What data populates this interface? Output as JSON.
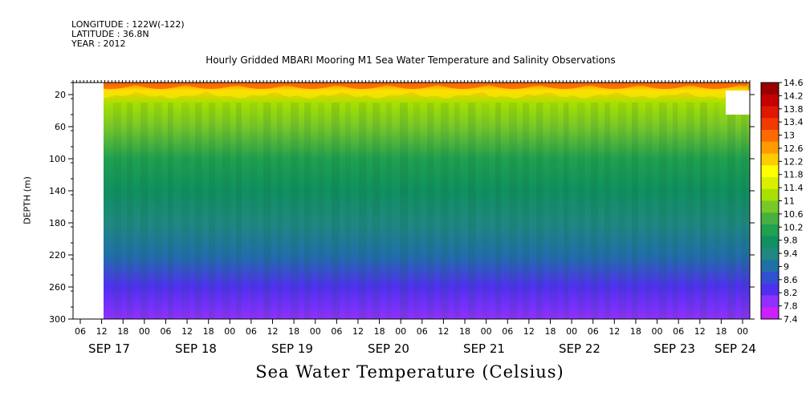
{
  "header": {
    "longitude": "LONGITUDE : 122W(-122)",
    "latitude": "LATITUDE : 36.8N",
    "year": "YEAR : 2012"
  },
  "chart_data": {
    "type": "heatmap",
    "title": "Hourly Gridded MBARI Mooring M1 Sea Water Temperature and Salinity Observations",
    "ylabel": "DEPTH (m)",
    "colorbar_title": "Sea Water Temperature (Celsius)",
    "y_ticks": [
      20,
      60,
      100,
      140,
      180,
      220,
      260,
      300
    ],
    "ylim": [
      300,
      5
    ],
    "x_hour_ticks": [
      "06",
      "12",
      "18",
      "00",
      "06",
      "12",
      "18",
      "00",
      "06",
      "12",
      "18",
      "00",
      "06",
      "12",
      "18",
      "00",
      "06",
      "12",
      "18",
      "00",
      "06",
      "12",
      "18",
      "00",
      "06",
      "12",
      "18",
      "00",
      "06",
      "12",
      "18",
      "00"
    ],
    "x_date_labels": [
      "SEP 17",
      "SEP 18",
      "SEP 19",
      "SEP 20",
      "SEP 21",
      "SEP 22",
      "SEP 23",
      "SEP 24"
    ],
    "x_range": [
      "SEP 17 06:00",
      "SEP 24 06:00"
    ],
    "data_start": "SEP 17 12:00",
    "colorbar_levels": [
      "14.6",
      "14.2",
      "13.8",
      "13.4",
      "13",
      "12.6",
      "12.2",
      "11.8",
      "11.4",
      "11",
      "10.6",
      "10.2",
      "9.8",
      "9.4",
      "9",
      "8.6",
      "8.2",
      "7.8",
      "7.4"
    ],
    "colorbar_colors": [
      "#9a0000",
      "#c40000",
      "#e01800",
      "#f03a00",
      "#ff6a00",
      "#ff9a00",
      "#ffcc00",
      "#ffff00",
      "#d8f000",
      "#a8e000",
      "#78c828",
      "#48b040",
      "#20a050",
      "#109060",
      "#208880",
      "#2070a8",
      "#3050d0",
      "#5030f0",
      "#9030ff",
      "#cc20ff"
    ],
    "depth_profile": [
      {
        "depth": 5,
        "temperature": 14.2
      },
      {
        "depth": 15,
        "temperature": 12.4
      },
      {
        "depth": 30,
        "temperature": 11.2
      },
      {
        "depth": 60,
        "temperature": 10.6
      },
      {
        "depth": 100,
        "temperature": 10.0
      },
      {
        "depth": 140,
        "temperature": 9.4
      },
      {
        "depth": 180,
        "temperature": 9.0
      },
      {
        "depth": 220,
        "temperature": 8.6
      },
      {
        "depth": 260,
        "temperature": 8.1
      },
      {
        "depth": 300,
        "temperature": 7.6
      }
    ]
  }
}
